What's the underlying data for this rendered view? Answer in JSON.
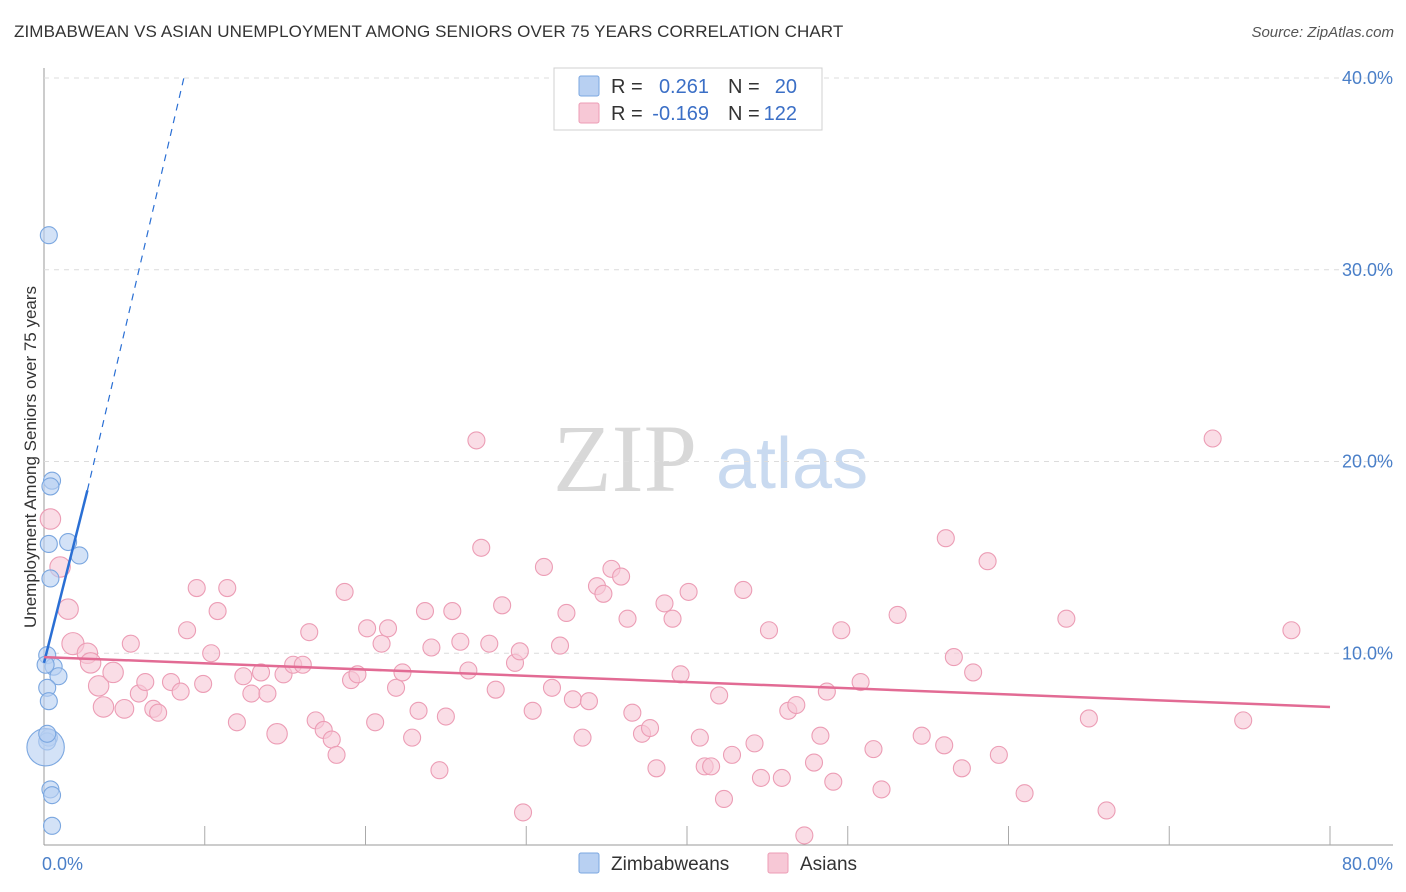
{
  "header": {
    "title": "ZIMBABWEAN VS ASIAN UNEMPLOYMENT AMONG SENIORS OVER 75 YEARS CORRELATION CHART",
    "source": "Source: ZipAtlas.com"
  },
  "watermark": {
    "zip": "ZIP",
    "atlas": "atlas"
  },
  "chart_data": {
    "type": "scatter",
    "title": "ZIMBABWEAN VS ASIAN UNEMPLOYMENT AMONG SENIORS OVER 75 YEARS CORRELATION CHART",
    "xlabel": "",
    "ylabel": "Unemployment Among Seniors over 75 years",
    "xlim": [
      0,
      80
    ],
    "ylim": [
      0,
      40
    ],
    "grid": true,
    "x_tick_labels": {
      "left": "0.0%",
      "right": "80.0%"
    },
    "y_ticks": [
      {
        "value": 10,
        "label": "10.0%"
      },
      {
        "value": 20,
        "label": "20.0%"
      },
      {
        "value": 30,
        "label": "30.0%"
      },
      {
        "value": 40,
        "label": "40.0%"
      }
    ],
    "legend": {
      "placement": "top-center",
      "entries": [
        {
          "r_label": "R =",
          "r_value": "0.261",
          "n_label": "N =",
          "n_value": "20"
        },
        {
          "r_label": "R =",
          "r_value": "-0.169",
          "n_label": "N =",
          "n_value": "122"
        }
      ]
    },
    "series": [
      {
        "name": "Zimbabweans",
        "color": "#7ba7e0",
        "fill": "#b8d0f2",
        "trend_color": "#2a6fd4",
        "trend": {
          "x0": 0,
          "y0": 9.5,
          "x1": 2.7,
          "y1": 18.5,
          "dash_x1": 8.7,
          "dash_y1": 40
        },
        "points": [
          [
            0.3,
            31.8,
            1
          ],
          [
            0.5,
            19.0,
            1
          ],
          [
            0.4,
            18.7,
            1
          ],
          [
            1.5,
            15.8,
            1
          ],
          [
            0.3,
            15.7,
            1
          ],
          [
            2.2,
            15.1,
            1
          ],
          [
            0.4,
            13.9,
            1
          ],
          [
            0.2,
            9.9,
            1
          ],
          [
            0.6,
            9.3,
            1
          ],
          [
            0.9,
            8.8,
            1
          ],
          [
            0.2,
            8.2,
            1
          ],
          [
            0.3,
            7.5,
            1
          ],
          [
            0.3,
            5.6,
            1
          ],
          [
            0.2,
            5.4,
            1
          ],
          [
            0.1,
            5.1,
            2.2
          ],
          [
            0.4,
            2.9,
            1
          ],
          [
            0.5,
            2.6,
            1
          ],
          [
            0.5,
            1.0,
            1
          ],
          [
            0.1,
            9.4,
            1
          ],
          [
            0.2,
            5.8,
            1
          ]
        ]
      },
      {
        "name": "Asians",
        "color": "#ec9db5",
        "fill": "#f7c8d6",
        "trend_color": "#e26b94",
        "trend": {
          "x0": 0,
          "y0": 9.8,
          "x1": 80,
          "y1": 7.2
        },
        "points": [
          [
            0.4,
            17.0,
            1.2
          ],
          [
            1.0,
            14.5,
            1.2
          ],
          [
            1.5,
            12.3,
            1.2
          ],
          [
            1.8,
            10.5,
            1.3
          ],
          [
            2.7,
            10.0,
            1.2
          ],
          [
            2.9,
            9.5,
            1.2
          ],
          [
            3.4,
            8.3,
            1.2
          ],
          [
            4.3,
            9.0,
            1.2
          ],
          [
            3.7,
            7.2,
            1.2
          ],
          [
            5.0,
            7.1,
            1.1
          ],
          [
            5.4,
            10.5,
            1
          ],
          [
            5.9,
            7.9,
            1
          ],
          [
            6.3,
            8.5,
            1
          ],
          [
            6.8,
            7.1,
            1
          ],
          [
            7.1,
            6.9,
            1
          ],
          [
            7.9,
            8.5,
            1
          ],
          [
            8.5,
            8.0,
            1
          ],
          [
            8.9,
            11.2,
            1
          ],
          [
            9.5,
            13.4,
            1
          ],
          [
            9.9,
            8.4,
            1
          ],
          [
            10.4,
            10.0,
            1
          ],
          [
            10.8,
            12.2,
            1
          ],
          [
            11.4,
            13.4,
            1
          ],
          [
            12.0,
            6.4,
            1
          ],
          [
            12.4,
            8.8,
            1
          ],
          [
            12.9,
            7.9,
            1
          ],
          [
            13.5,
            9.0,
            1
          ],
          [
            13.9,
            7.9,
            1
          ],
          [
            14.5,
            5.8,
            1.2
          ],
          [
            14.9,
            8.9,
            1
          ],
          [
            15.5,
            9.4,
            1
          ],
          [
            16.1,
            9.4,
            1
          ],
          [
            16.5,
            11.1,
            1
          ],
          [
            16.9,
            6.5,
            1
          ],
          [
            17.4,
            6.0,
            1
          ],
          [
            17.9,
            5.5,
            1
          ],
          [
            18.2,
            4.7,
            1
          ],
          [
            18.7,
            13.2,
            1
          ],
          [
            19.1,
            8.6,
            1
          ],
          [
            19.5,
            8.9,
            1
          ],
          [
            20.1,
            11.3,
            1
          ],
          [
            20.6,
            6.4,
            1
          ],
          [
            21.0,
            10.5,
            1
          ],
          [
            21.4,
            11.3,
            1
          ],
          [
            21.9,
            8.2,
            1
          ],
          [
            22.3,
            9.0,
            1
          ],
          [
            22.9,
            5.6,
            1
          ],
          [
            23.3,
            7.0,
            1
          ],
          [
            23.7,
            12.2,
            1
          ],
          [
            24.1,
            10.3,
            1
          ],
          [
            24.6,
            3.9,
            1
          ],
          [
            25.0,
            6.7,
            1
          ],
          [
            25.4,
            12.2,
            1
          ],
          [
            25.9,
            10.6,
            1
          ],
          [
            26.4,
            9.1,
            1
          ],
          [
            26.9,
            21.1,
            1
          ],
          [
            27.2,
            15.5,
            1
          ],
          [
            27.7,
            10.5,
            1
          ],
          [
            28.1,
            8.1,
            1
          ],
          [
            28.5,
            12.5,
            1
          ],
          [
            29.3,
            9.5,
            1
          ],
          [
            29.6,
            10.1,
            1
          ],
          [
            29.8,
            1.7,
            1
          ],
          [
            30.4,
            7.0,
            1
          ],
          [
            31.1,
            14.5,
            1
          ],
          [
            31.6,
            8.2,
            1
          ],
          [
            32.1,
            10.4,
            1
          ],
          [
            32.5,
            12.1,
            1
          ],
          [
            32.9,
            7.6,
            1
          ],
          [
            33.5,
            5.6,
            1
          ],
          [
            33.9,
            7.5,
            1
          ],
          [
            34.4,
            13.5,
            1
          ],
          [
            34.8,
            13.1,
            1
          ],
          [
            35.3,
            14.4,
            1
          ],
          [
            35.9,
            14.0,
            1
          ],
          [
            36.3,
            11.8,
            1
          ],
          [
            36.6,
            6.9,
            1
          ],
          [
            37.2,
            5.8,
            1
          ],
          [
            37.7,
            6.1,
            1
          ],
          [
            38.1,
            4.0,
            1
          ],
          [
            38.6,
            12.6,
            1
          ],
          [
            39.1,
            11.8,
            1
          ],
          [
            39.6,
            8.9,
            1
          ],
          [
            40.1,
            13.2,
            1
          ],
          [
            40.8,
            5.6,
            1
          ],
          [
            41.1,
            4.1,
            1
          ],
          [
            41.5,
            4.1,
            1
          ],
          [
            42.0,
            7.8,
            1
          ],
          [
            42.3,
            2.4,
            1
          ],
          [
            42.8,
            4.7,
            1
          ],
          [
            43.5,
            13.3,
            1
          ],
          [
            44.2,
            5.3,
            1
          ],
          [
            44.6,
            3.5,
            1
          ],
          [
            45.1,
            11.2,
            1
          ],
          [
            45.9,
            3.5,
            1
          ],
          [
            46.3,
            7.0,
            1
          ],
          [
            46.8,
            7.3,
            1
          ],
          [
            47.3,
            0.5,
            1
          ],
          [
            47.9,
            4.3,
            1
          ],
          [
            48.3,
            5.7,
            1
          ],
          [
            48.7,
            8.0,
            1
          ],
          [
            49.1,
            3.3,
            1
          ],
          [
            49.6,
            11.2,
            1
          ],
          [
            50.8,
            8.5,
            1
          ],
          [
            51.6,
            5.0,
            1
          ],
          [
            52.1,
            2.9,
            1
          ],
          [
            53.1,
            12.0,
            1
          ],
          [
            54.6,
            5.7,
            1
          ],
          [
            56.0,
            5.2,
            1
          ],
          [
            56.1,
            16.0,
            1
          ],
          [
            56.6,
            9.8,
            1
          ],
          [
            57.1,
            4.0,
            1
          ],
          [
            57.8,
            9.0,
            1
          ],
          [
            58.7,
            14.8,
            1
          ],
          [
            59.4,
            4.7,
            1
          ],
          [
            61.0,
            2.7,
            1
          ],
          [
            63.6,
            11.8,
            1
          ],
          [
            65.0,
            6.6,
            1
          ],
          [
            66.1,
            1.8,
            1
          ],
          [
            72.7,
            21.2,
            1
          ],
          [
            74.6,
            6.5,
            1
          ],
          [
            77.6,
            11.2,
            1
          ]
        ]
      }
    ]
  }
}
